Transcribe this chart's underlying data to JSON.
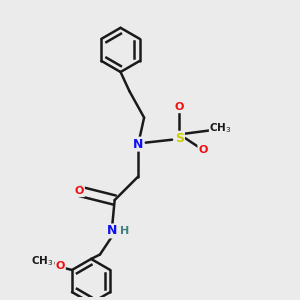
{
  "bg_color": "#ebebeb",
  "bond_color": "#1a1a1a",
  "atom_colors": {
    "N": "#1010ee",
    "O": "#ee1010",
    "S": "#cccc00",
    "H": "#408080",
    "C": "#1a1a1a"
  },
  "benz_r": 0.075,
  "lw": 1.8
}
